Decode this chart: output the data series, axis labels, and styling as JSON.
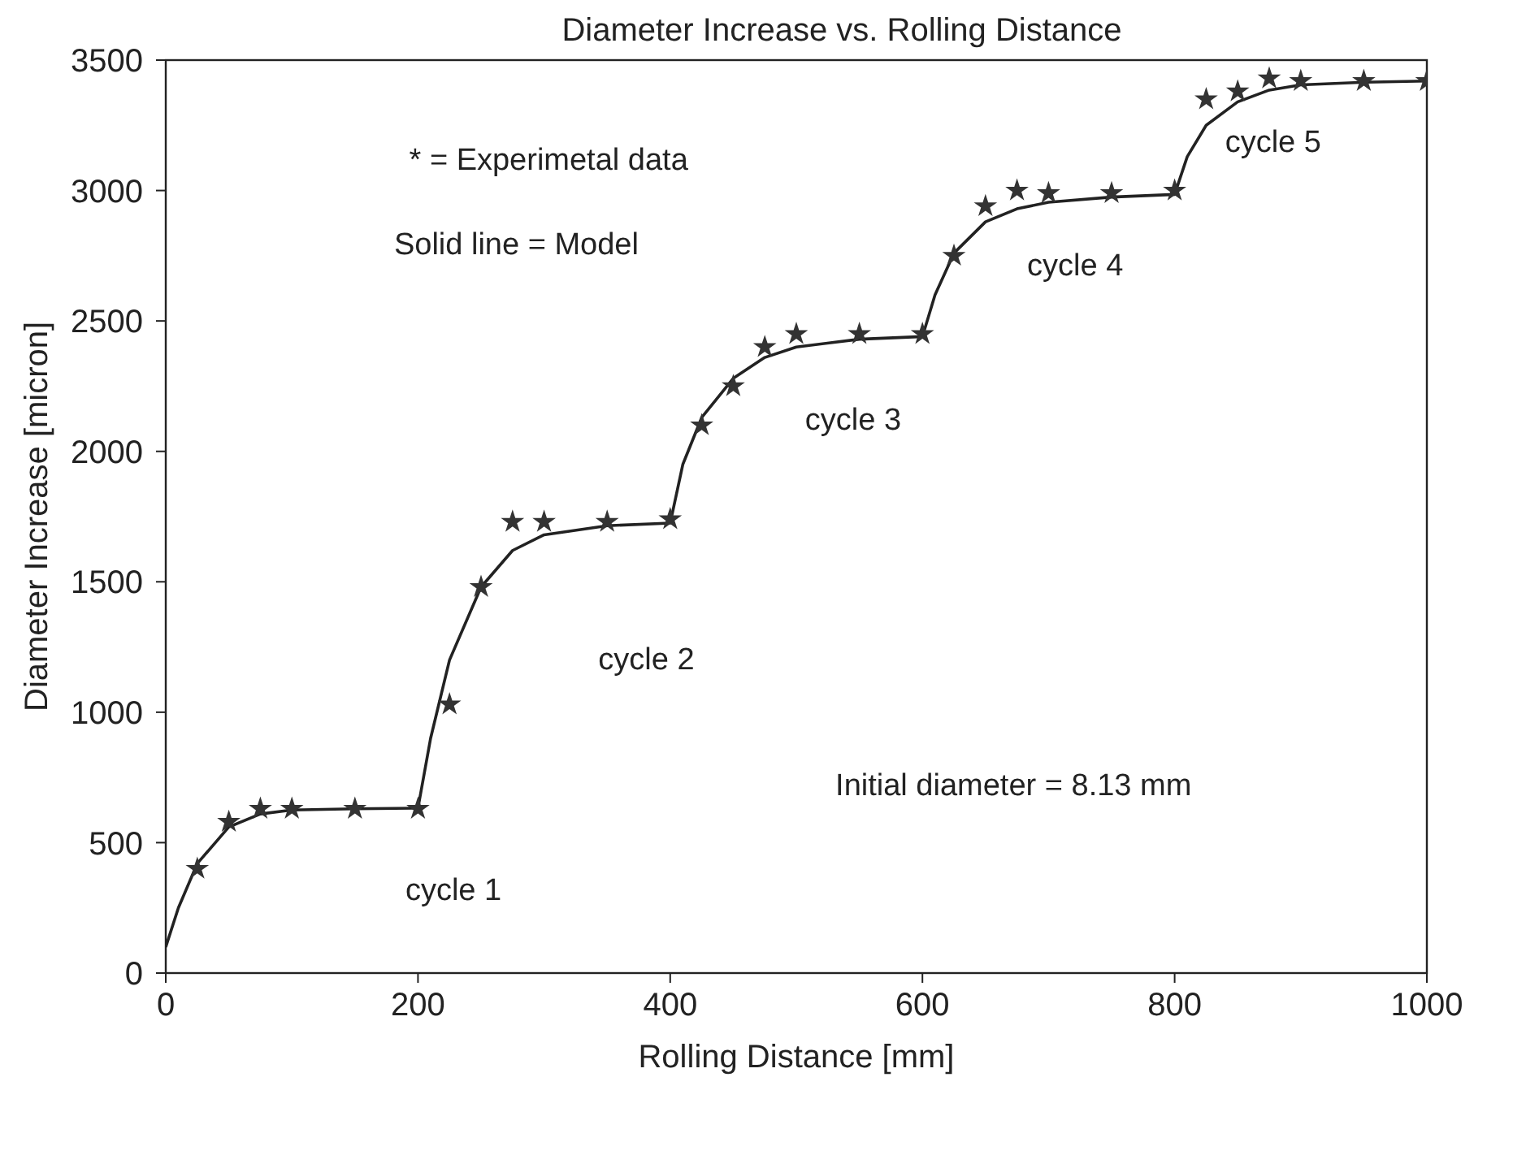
{
  "chart_data": {
    "type": "scatter",
    "title": "Diameter Increase vs. Rolling Distance",
    "xlabel": "Rolling Distance  [mm]",
    "ylabel": "Diameter Increase  [micron]",
    "xlim": [
      0,
      1000
    ],
    "xticks": [
      0,
      200,
      400,
      600,
      800,
      1000
    ],
    "ylim": [
      0,
      3500
    ],
    "yticks": [
      0,
      500,
      1000,
      1500,
      2000,
      2500,
      3000,
      3500
    ],
    "grid": false,
    "legend": false,
    "series": [
      {
        "type": "scatter",
        "marker": "star",
        "color": "#333333",
        "x": [
          25,
          50,
          75,
          100,
          150,
          200,
          225,
          250,
          275,
          300,
          350,
          400,
          425,
          450,
          475,
          500,
          550,
          600,
          625,
          650,
          675,
          700,
          750,
          800,
          825,
          850,
          875,
          900,
          950,
          1000
        ],
        "values": [
          400,
          580,
          630,
          630,
          630,
          630,
          1030,
          1480,
          1730,
          1730,
          1730,
          1740,
          2100,
          2250,
          2400,
          2450,
          2450,
          2450,
          2750,
          2940,
          3000,
          2990,
          2990,
          3000,
          3350,
          3380,
          3430,
          3420,
          3420,
          3420
        ]
      },
      {
        "type": "line",
        "marker": "none",
        "line_style": "solid",
        "color": "#222222",
        "x": [
          0,
          10,
          25,
          50,
          75,
          100,
          150,
          200,
          210,
          225,
          250,
          275,
          300,
          350,
          400,
          410,
          425,
          450,
          475,
          500,
          550,
          600,
          610,
          625,
          650,
          675,
          700,
          750,
          800,
          810,
          825,
          850,
          875,
          900,
          950,
          1000
        ],
        "values": [
          100,
          250,
          420,
          560,
          610,
          625,
          630,
          632,
          900,
          1200,
          1480,
          1620,
          1680,
          1715,
          1725,
          1950,
          2130,
          2280,
          2360,
          2400,
          2430,
          2440,
          2600,
          2760,
          2880,
          2930,
          2955,
          2975,
          2985,
          3130,
          3250,
          3340,
          3385,
          3405,
          3415,
          3420
        ]
      }
    ],
    "annotations": [
      "* = Experimetal data",
      "Solid line  = Model",
      "cycle 1",
      "cycle 2",
      "cycle 3",
      "cycle 4",
      "cycle 5",
      "Initial diameter = 8.13 mm"
    ]
  }
}
